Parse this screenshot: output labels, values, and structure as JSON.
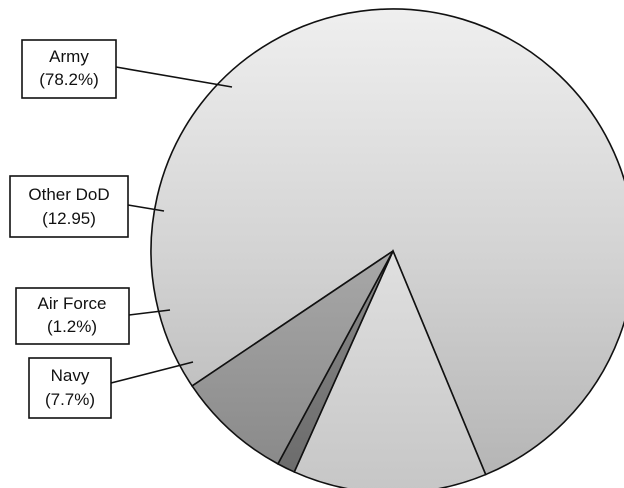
{
  "chart_data": {
    "type": "pie",
    "title": "",
    "slices": [
      {
        "label": "Army",
        "value_text": "(78.2%)",
        "value": 78.2,
        "color": "#d6d6d6"
      },
      {
        "label": "Other DoD",
        "value_text": "(12.95)",
        "value": 12.95,
        "color": "#c9c9c9"
      },
      {
        "label": "Air Force",
        "value_text": "(1.2%)",
        "value": 1.2,
        "color": "#777777"
      },
      {
        "label": "Navy",
        "value_text": "(7.7%)",
        "value": 7.7,
        "color": "#9a9a9a"
      }
    ],
    "legend": "none"
  }
}
